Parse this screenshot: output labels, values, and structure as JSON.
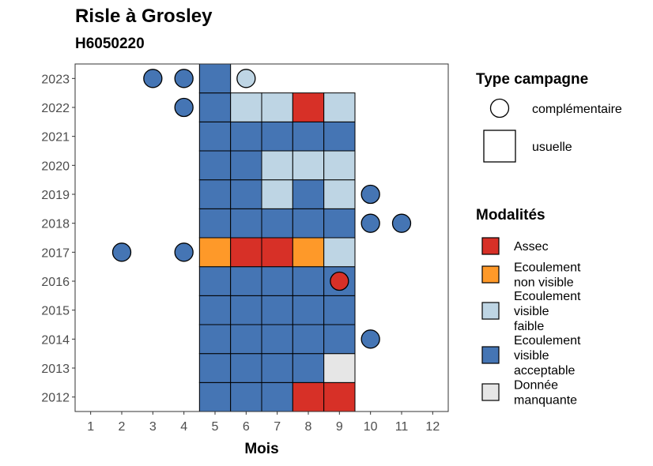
{
  "chart_data": {
    "type": "heatmap",
    "title": "Risle à Grosley",
    "subtitle": "H6050220",
    "xlabel": "Mois",
    "ylabel": "",
    "x_ticks": [
      1,
      2,
      3,
      4,
      5,
      6,
      7,
      8,
      9,
      10,
      11,
      12
    ],
    "y_ticks": [
      2012,
      2013,
      2014,
      2015,
      2016,
      2017,
      2018,
      2019,
      2020,
      2021,
      2022,
      2023
    ],
    "xlim": [
      0.5,
      12.5
    ],
    "ylim": [
      2011.5,
      2023.5
    ],
    "grid": false,
    "modalites": [
      {
        "key": "assec",
        "label": "Assec",
        "label_lines": [
          "Assec"
        ],
        "color": "#d73027"
      },
      {
        "key": "nonvisible",
        "label": "Ecoulement non visible",
        "label_lines": [
          "Ecoulement",
          "non visible"
        ],
        "color": "#fe9929"
      },
      {
        "key": "faible",
        "label": "Ecoulement visible faible",
        "label_lines": [
          "Ecoulement",
          "visible",
          "faible"
        ],
        "color": "#bed5e4"
      },
      {
        "key": "acceptable",
        "label": "Ecoulement visible acceptable",
        "label_lines": [
          "Ecoulement",
          "visible",
          "acceptable"
        ],
        "color": "#4575b4"
      },
      {
        "key": "manquante",
        "label": "Donnée manquante",
        "label_lines": [
          "Donnée",
          "manquante"
        ],
        "color": "#e6e6e6"
      }
    ],
    "campagne_types": [
      {
        "key": "complementaire",
        "label": "complémentaire",
        "shape": "circle"
      },
      {
        "key": "usuelle",
        "label": "usuelle",
        "shape": "square"
      }
    ],
    "usuelle": [
      {
        "year": 2012,
        "month": 5,
        "modalite": "acceptable"
      },
      {
        "year": 2012,
        "month": 6,
        "modalite": "acceptable"
      },
      {
        "year": 2012,
        "month": 7,
        "modalite": "acceptable"
      },
      {
        "year": 2012,
        "month": 8,
        "modalite": "assec"
      },
      {
        "year": 2012,
        "month": 9,
        "modalite": "assec"
      },
      {
        "year": 2013,
        "month": 5,
        "modalite": "acceptable"
      },
      {
        "year": 2013,
        "month": 6,
        "modalite": "acceptable"
      },
      {
        "year": 2013,
        "month": 7,
        "modalite": "acceptable"
      },
      {
        "year": 2013,
        "month": 8,
        "modalite": "acceptable"
      },
      {
        "year": 2013,
        "month": 9,
        "modalite": "manquante"
      },
      {
        "year": 2014,
        "month": 5,
        "modalite": "acceptable"
      },
      {
        "year": 2014,
        "month": 6,
        "modalite": "acceptable"
      },
      {
        "year": 2014,
        "month": 7,
        "modalite": "acceptable"
      },
      {
        "year": 2014,
        "month": 8,
        "modalite": "acceptable"
      },
      {
        "year": 2014,
        "month": 9,
        "modalite": "acceptable"
      },
      {
        "year": 2015,
        "month": 5,
        "modalite": "acceptable"
      },
      {
        "year": 2015,
        "month": 6,
        "modalite": "acceptable"
      },
      {
        "year": 2015,
        "month": 7,
        "modalite": "acceptable"
      },
      {
        "year": 2015,
        "month": 8,
        "modalite": "acceptable"
      },
      {
        "year": 2015,
        "month": 9,
        "modalite": "acceptable"
      },
      {
        "year": 2016,
        "month": 5,
        "modalite": "acceptable"
      },
      {
        "year": 2016,
        "month": 6,
        "modalite": "acceptable"
      },
      {
        "year": 2016,
        "month": 7,
        "modalite": "acceptable"
      },
      {
        "year": 2016,
        "month": 8,
        "modalite": "acceptable"
      },
      {
        "year": 2016,
        "month": 9,
        "modalite": "acceptable"
      },
      {
        "year": 2017,
        "month": 5,
        "modalite": "nonvisible"
      },
      {
        "year": 2017,
        "month": 6,
        "modalite": "assec"
      },
      {
        "year": 2017,
        "month": 7,
        "modalite": "assec"
      },
      {
        "year": 2017,
        "month": 8,
        "modalite": "nonvisible"
      },
      {
        "year": 2017,
        "month": 9,
        "modalite": "faible"
      },
      {
        "year": 2018,
        "month": 5,
        "modalite": "acceptable"
      },
      {
        "year": 2018,
        "month": 6,
        "modalite": "acceptable"
      },
      {
        "year": 2018,
        "month": 7,
        "modalite": "acceptable"
      },
      {
        "year": 2018,
        "month": 8,
        "modalite": "acceptable"
      },
      {
        "year": 2018,
        "month": 9,
        "modalite": "acceptable"
      },
      {
        "year": 2019,
        "month": 5,
        "modalite": "acceptable"
      },
      {
        "year": 2019,
        "month": 6,
        "modalite": "acceptable"
      },
      {
        "year": 2019,
        "month": 7,
        "modalite": "faible"
      },
      {
        "year": 2019,
        "month": 8,
        "modalite": "acceptable"
      },
      {
        "year": 2019,
        "month": 9,
        "modalite": "faible"
      },
      {
        "year": 2020,
        "month": 5,
        "modalite": "acceptable"
      },
      {
        "year": 2020,
        "month": 6,
        "modalite": "acceptable"
      },
      {
        "year": 2020,
        "month": 7,
        "modalite": "faible"
      },
      {
        "year": 2020,
        "month": 8,
        "modalite": "faible"
      },
      {
        "year": 2020,
        "month": 9,
        "modalite": "faible"
      },
      {
        "year": 2021,
        "month": 5,
        "modalite": "acceptable"
      },
      {
        "year": 2021,
        "month": 6,
        "modalite": "acceptable"
      },
      {
        "year": 2021,
        "month": 7,
        "modalite": "acceptable"
      },
      {
        "year": 2021,
        "month": 8,
        "modalite": "acceptable"
      },
      {
        "year": 2021,
        "month": 9,
        "modalite": "acceptable"
      },
      {
        "year": 2022,
        "month": 5,
        "modalite": "acceptable"
      },
      {
        "year": 2022,
        "month": 6,
        "modalite": "faible"
      },
      {
        "year": 2022,
        "month": 7,
        "modalite": "faible"
      },
      {
        "year": 2022,
        "month": 8,
        "modalite": "assec"
      },
      {
        "year": 2022,
        "month": 9,
        "modalite": "faible"
      },
      {
        "year": 2023,
        "month": 5,
        "modalite": "acceptable"
      }
    ],
    "complementaire": [
      {
        "year": 2023,
        "month": 3,
        "modalite": "acceptable"
      },
      {
        "year": 2023,
        "month": 4,
        "modalite": "acceptable"
      },
      {
        "year": 2023,
        "month": 6,
        "modalite": "faible"
      },
      {
        "year": 2022,
        "month": 4,
        "modalite": "acceptable"
      },
      {
        "year": 2019,
        "month": 10,
        "modalite": "acceptable"
      },
      {
        "year": 2018,
        "month": 10,
        "modalite": "acceptable"
      },
      {
        "year": 2018,
        "month": 11,
        "modalite": "acceptable"
      },
      {
        "year": 2017,
        "month": 2,
        "modalite": "acceptable"
      },
      {
        "year": 2017,
        "month": 4,
        "modalite": "acceptable"
      },
      {
        "year": 2016,
        "month": 9,
        "modalite": "assec"
      },
      {
        "year": 2014,
        "month": 10,
        "modalite": "acceptable"
      }
    ]
  },
  "legend": {
    "campagne_title": "Type campagne",
    "modalites_title": "Modalités"
  }
}
